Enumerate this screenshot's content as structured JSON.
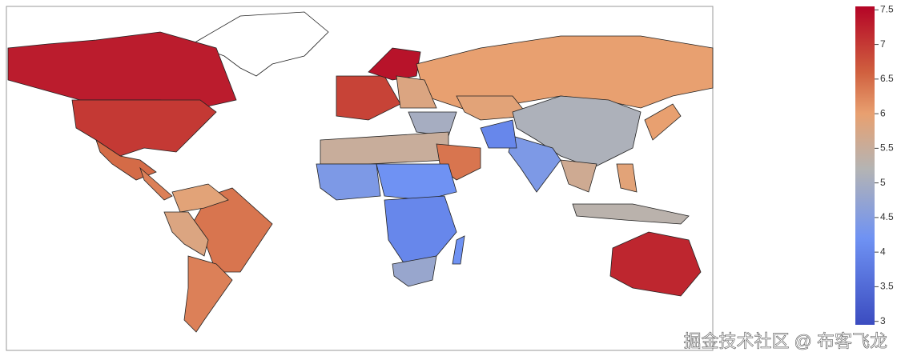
{
  "chart_data": {
    "type": "choropleth",
    "values": [
      7.3,
      7.0,
      6.5,
      6.3,
      6.4,
      5.9,
      5.8,
      6.3,
      6.9,
      7.4,
      6.0,
      5.8,
      5.0,
      5.9,
      5.1,
      4.4,
      4.0,
      5.5,
      6.4,
      4.4,
      4.2,
      4.0,
      4.8,
      4.2,
      5.6,
      5.3,
      6.0,
      7.2,
      5.9
    ],
    "clim": [
      2.95,
      7.55
    ],
    "colorscale": [
      [
        2.95,
        "#3b4cc0"
      ],
      [
        4.2,
        "#6f92f3"
      ],
      [
        5.2,
        "#b4b4b4"
      ],
      [
        6.0,
        "#e8a070"
      ],
      [
        6.6,
        "#d0603f"
      ],
      [
        7.55,
        "#b40426"
      ]
    ],
    "colorbar_ticks": [
      3,
      3.5,
      4,
      4.5,
      5,
      5.5,
      6,
      6.5,
      7,
      7.5
    ],
    "watermark": "掘金技术社区 @ 布客飞龙"
  }
}
